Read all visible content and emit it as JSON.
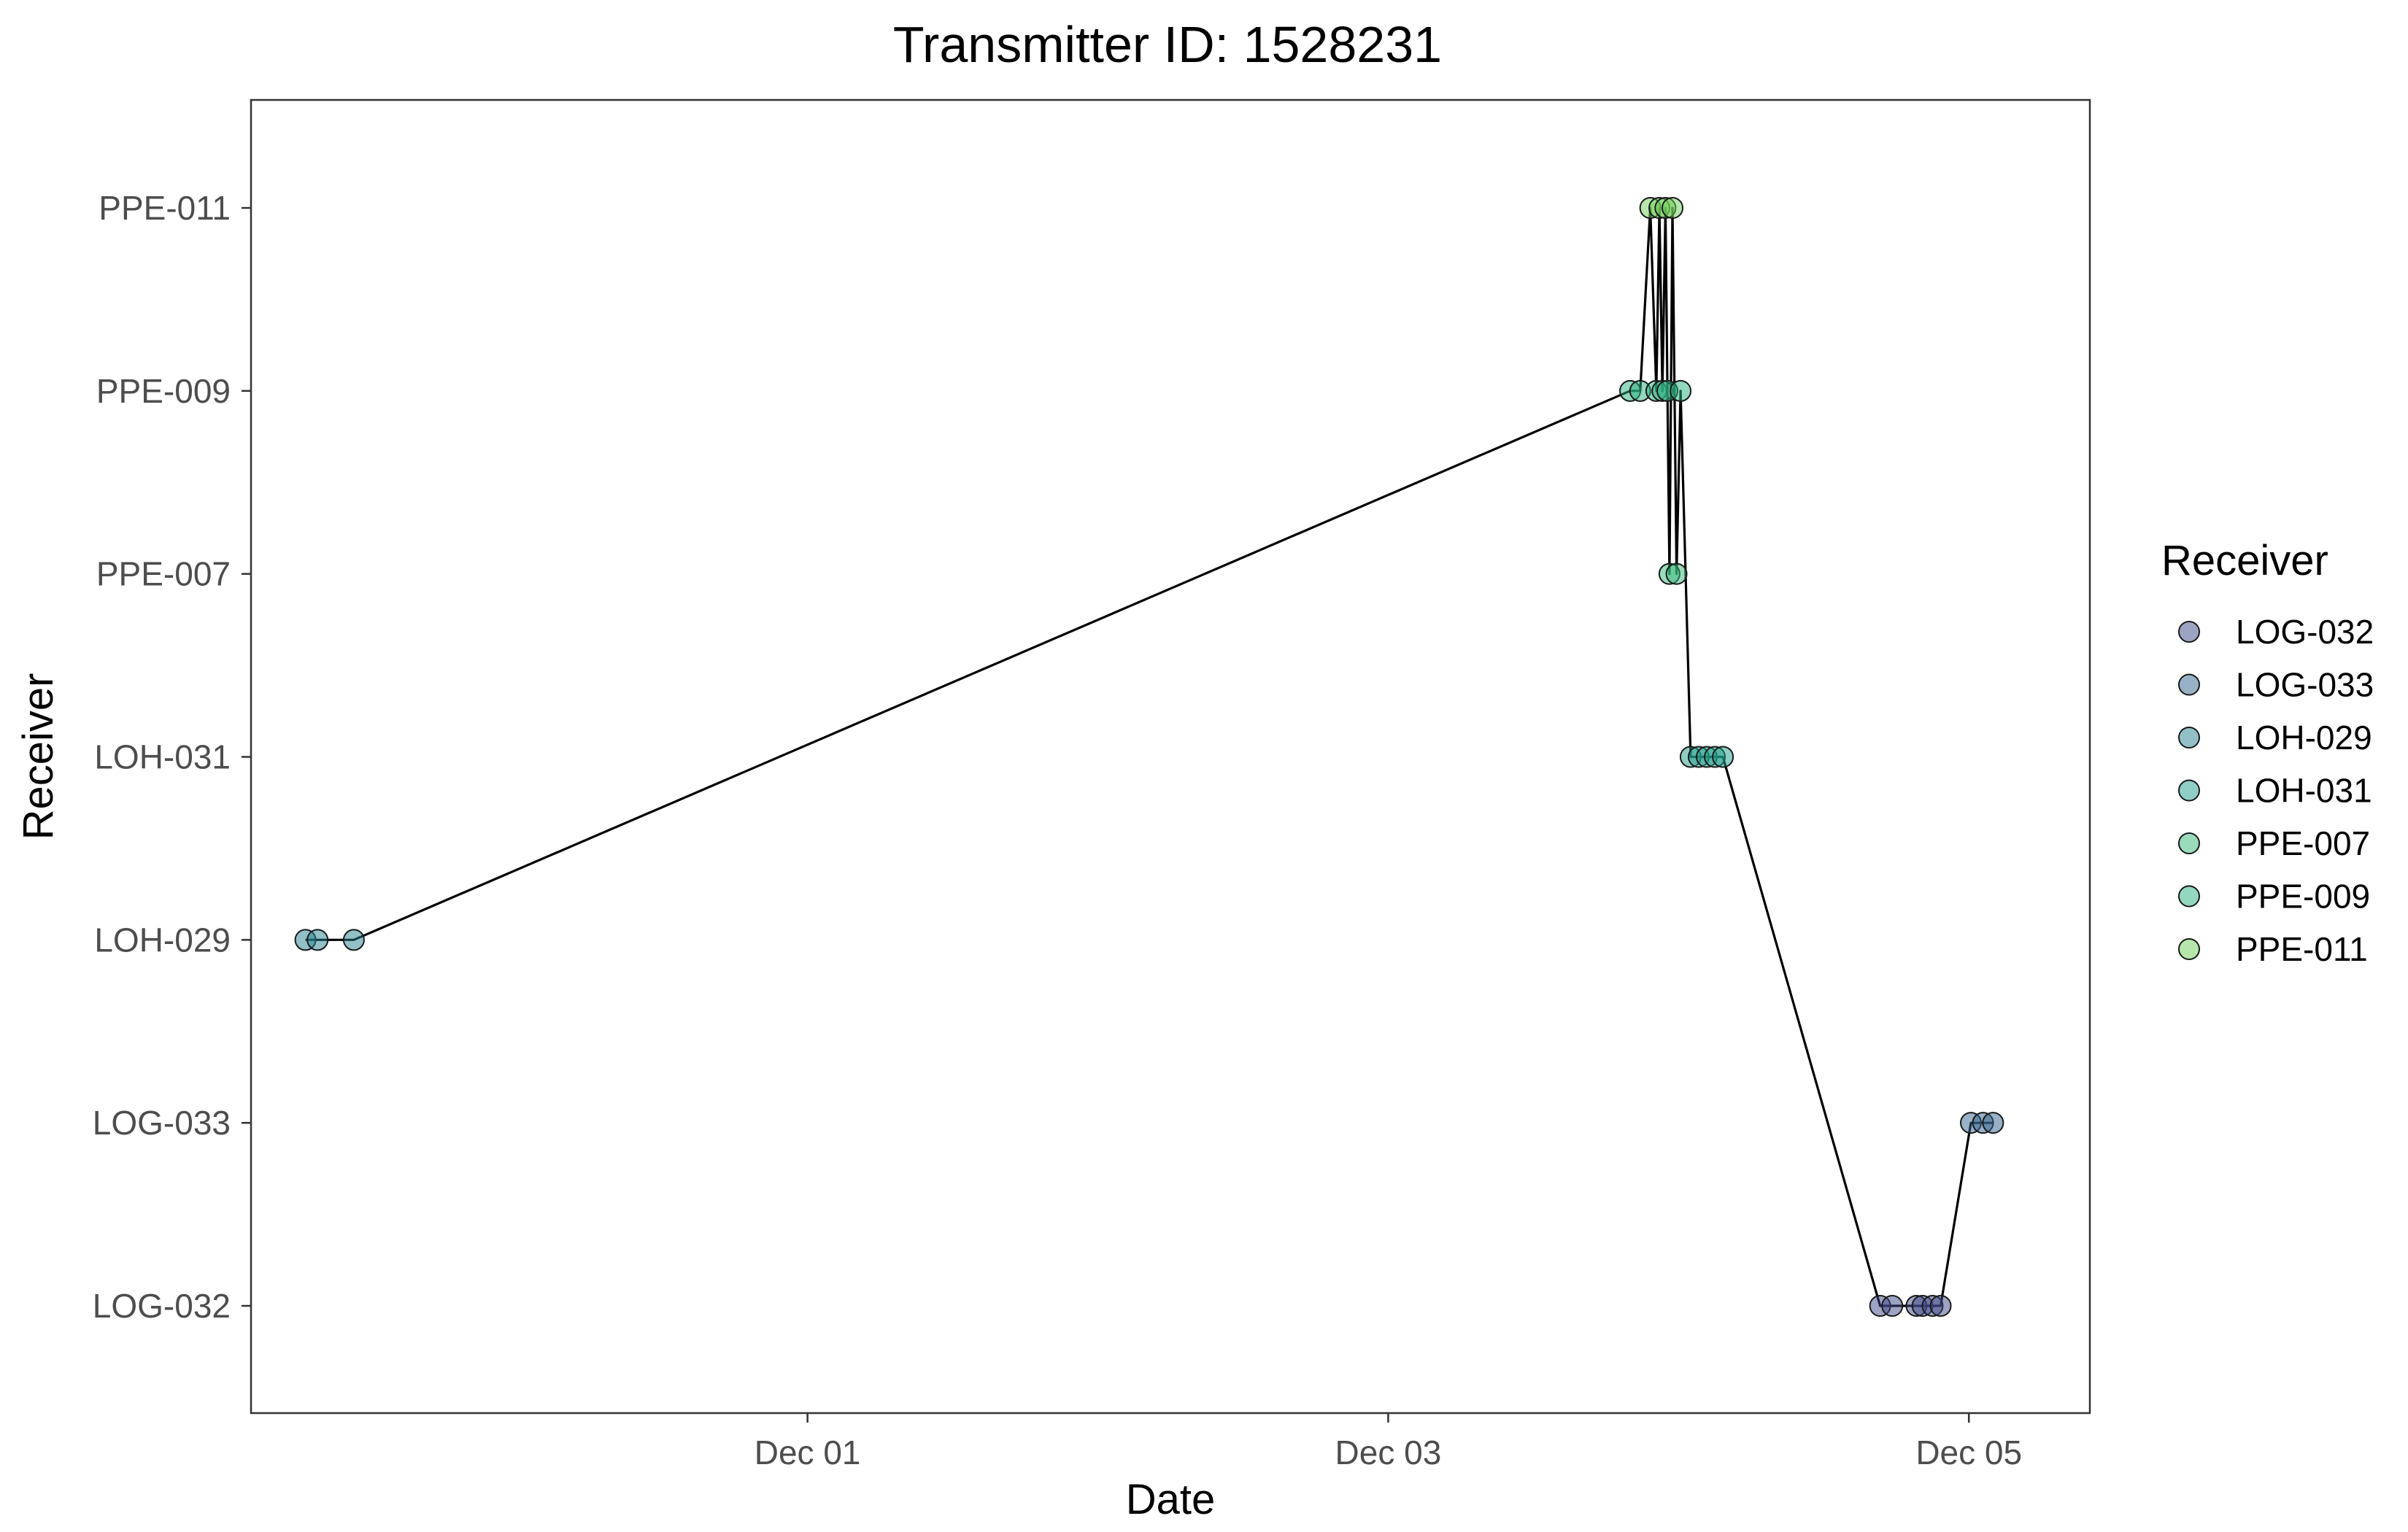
{
  "chart_data": {
    "type": "scatter",
    "title": "Transmitter ID: 1528231",
    "xlabel": "Date",
    "ylabel": "Receiver",
    "x_axis_type": "datetime",
    "x_tick_values": [
      "2024-12-01",
      "2024-12-03",
      "2024-12-05"
    ],
    "x_tick_labels": [
      "Dec 01",
      "Dec 03",
      "Dec 05"
    ],
    "xlim": [
      "2024-11-29T02:00",
      "2024-12-05T10:00"
    ],
    "categories": [
      "LOG-032",
      "LOG-033",
      "LOH-029",
      "LOH-031",
      "PPE-007",
      "PPE-009",
      "PPE-011"
    ],
    "legend": {
      "title": "Receiver",
      "position": "right",
      "entries": [
        {
          "label": "LOG-032",
          "color": "#3f4788"
        },
        {
          "label": "LOG-033",
          "color": "#33638d"
        },
        {
          "label": "LOH-029",
          "color": "#26828e"
        },
        {
          "label": "LOH-031",
          "color": "#1f9e89"
        },
        {
          "label": "PPE-007",
          "color": "#35b779"
        },
        {
          "label": "PPE-009",
          "color": "#29af7f"
        },
        {
          "label": "PPE-011",
          "color": "#6ece58"
        }
      ]
    },
    "grid": false,
    "connected": true,
    "point_alpha": 0.5,
    "points": [
      {
        "x": "2024-11-29T06:30",
        "y": "LOH-029"
      },
      {
        "x": "2024-11-29T07:30",
        "y": "LOH-029"
      },
      {
        "x": "2024-11-29T10:30",
        "y": "LOH-029"
      },
      {
        "x": "2024-12-03T20:00",
        "y": "PPE-009"
      },
      {
        "x": "2024-12-03T20:50",
        "y": "PPE-009"
      },
      {
        "x": "2024-12-03T21:40",
        "y": "PPE-011"
      },
      {
        "x": "2024-12-03T22:10",
        "y": "PPE-009"
      },
      {
        "x": "2024-12-03T22:25",
        "y": "PPE-011"
      },
      {
        "x": "2024-12-03T22:40",
        "y": "PPE-009"
      },
      {
        "x": "2024-12-03T22:55",
        "y": "PPE-011"
      },
      {
        "x": "2024-12-03T23:05",
        "y": "PPE-009"
      },
      {
        "x": "2024-12-03T23:15",
        "y": "PPE-007"
      },
      {
        "x": "2024-12-03T23:30",
        "y": "PPE-011"
      },
      {
        "x": "2024-12-03T23:50",
        "y": "PPE-007"
      },
      {
        "x": "2024-12-04T00:10",
        "y": "PPE-009"
      },
      {
        "x": "2024-12-04T01:00",
        "y": "LOH-031"
      },
      {
        "x": "2024-12-04T01:40",
        "y": "LOH-031"
      },
      {
        "x": "2024-12-04T02:20",
        "y": "LOH-031"
      },
      {
        "x": "2024-12-04T03:00",
        "y": "LOH-031"
      },
      {
        "x": "2024-12-04T03:40",
        "y": "LOH-031"
      },
      {
        "x": "2024-12-04T16:40",
        "y": "LOG-032"
      },
      {
        "x": "2024-12-04T17:40",
        "y": "LOG-032"
      },
      {
        "x": "2024-12-04T19:40",
        "y": "LOG-032"
      },
      {
        "x": "2024-12-04T20:10",
        "y": "LOG-032"
      },
      {
        "x": "2024-12-04T21:00",
        "y": "LOG-032"
      },
      {
        "x": "2024-12-04T21:40",
        "y": "LOG-032"
      },
      {
        "x": "2024-12-05T00:10",
        "y": "LOG-033"
      },
      {
        "x": "2024-12-05T01:10",
        "y": "LOG-033"
      },
      {
        "x": "2024-12-05T02:00",
        "y": "LOG-033"
      }
    ]
  },
  "colors": {
    "line": "#000000",
    "panel_border": "#333333",
    "tick_text": "#4d4d4d",
    "point_stroke": "#1a1a1a"
  }
}
